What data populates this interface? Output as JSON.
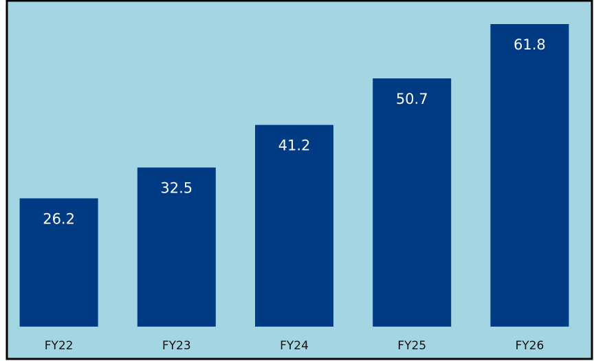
{
  "chart_data": {
    "type": "bar",
    "categories": [
      "FY22",
      "FY23",
      "FY24",
      "FY25",
      "FY26"
    ],
    "values": [
      26.2,
      32.5,
      41.2,
      50.7,
      61.8
    ],
    "color": "#003b84"
  }
}
